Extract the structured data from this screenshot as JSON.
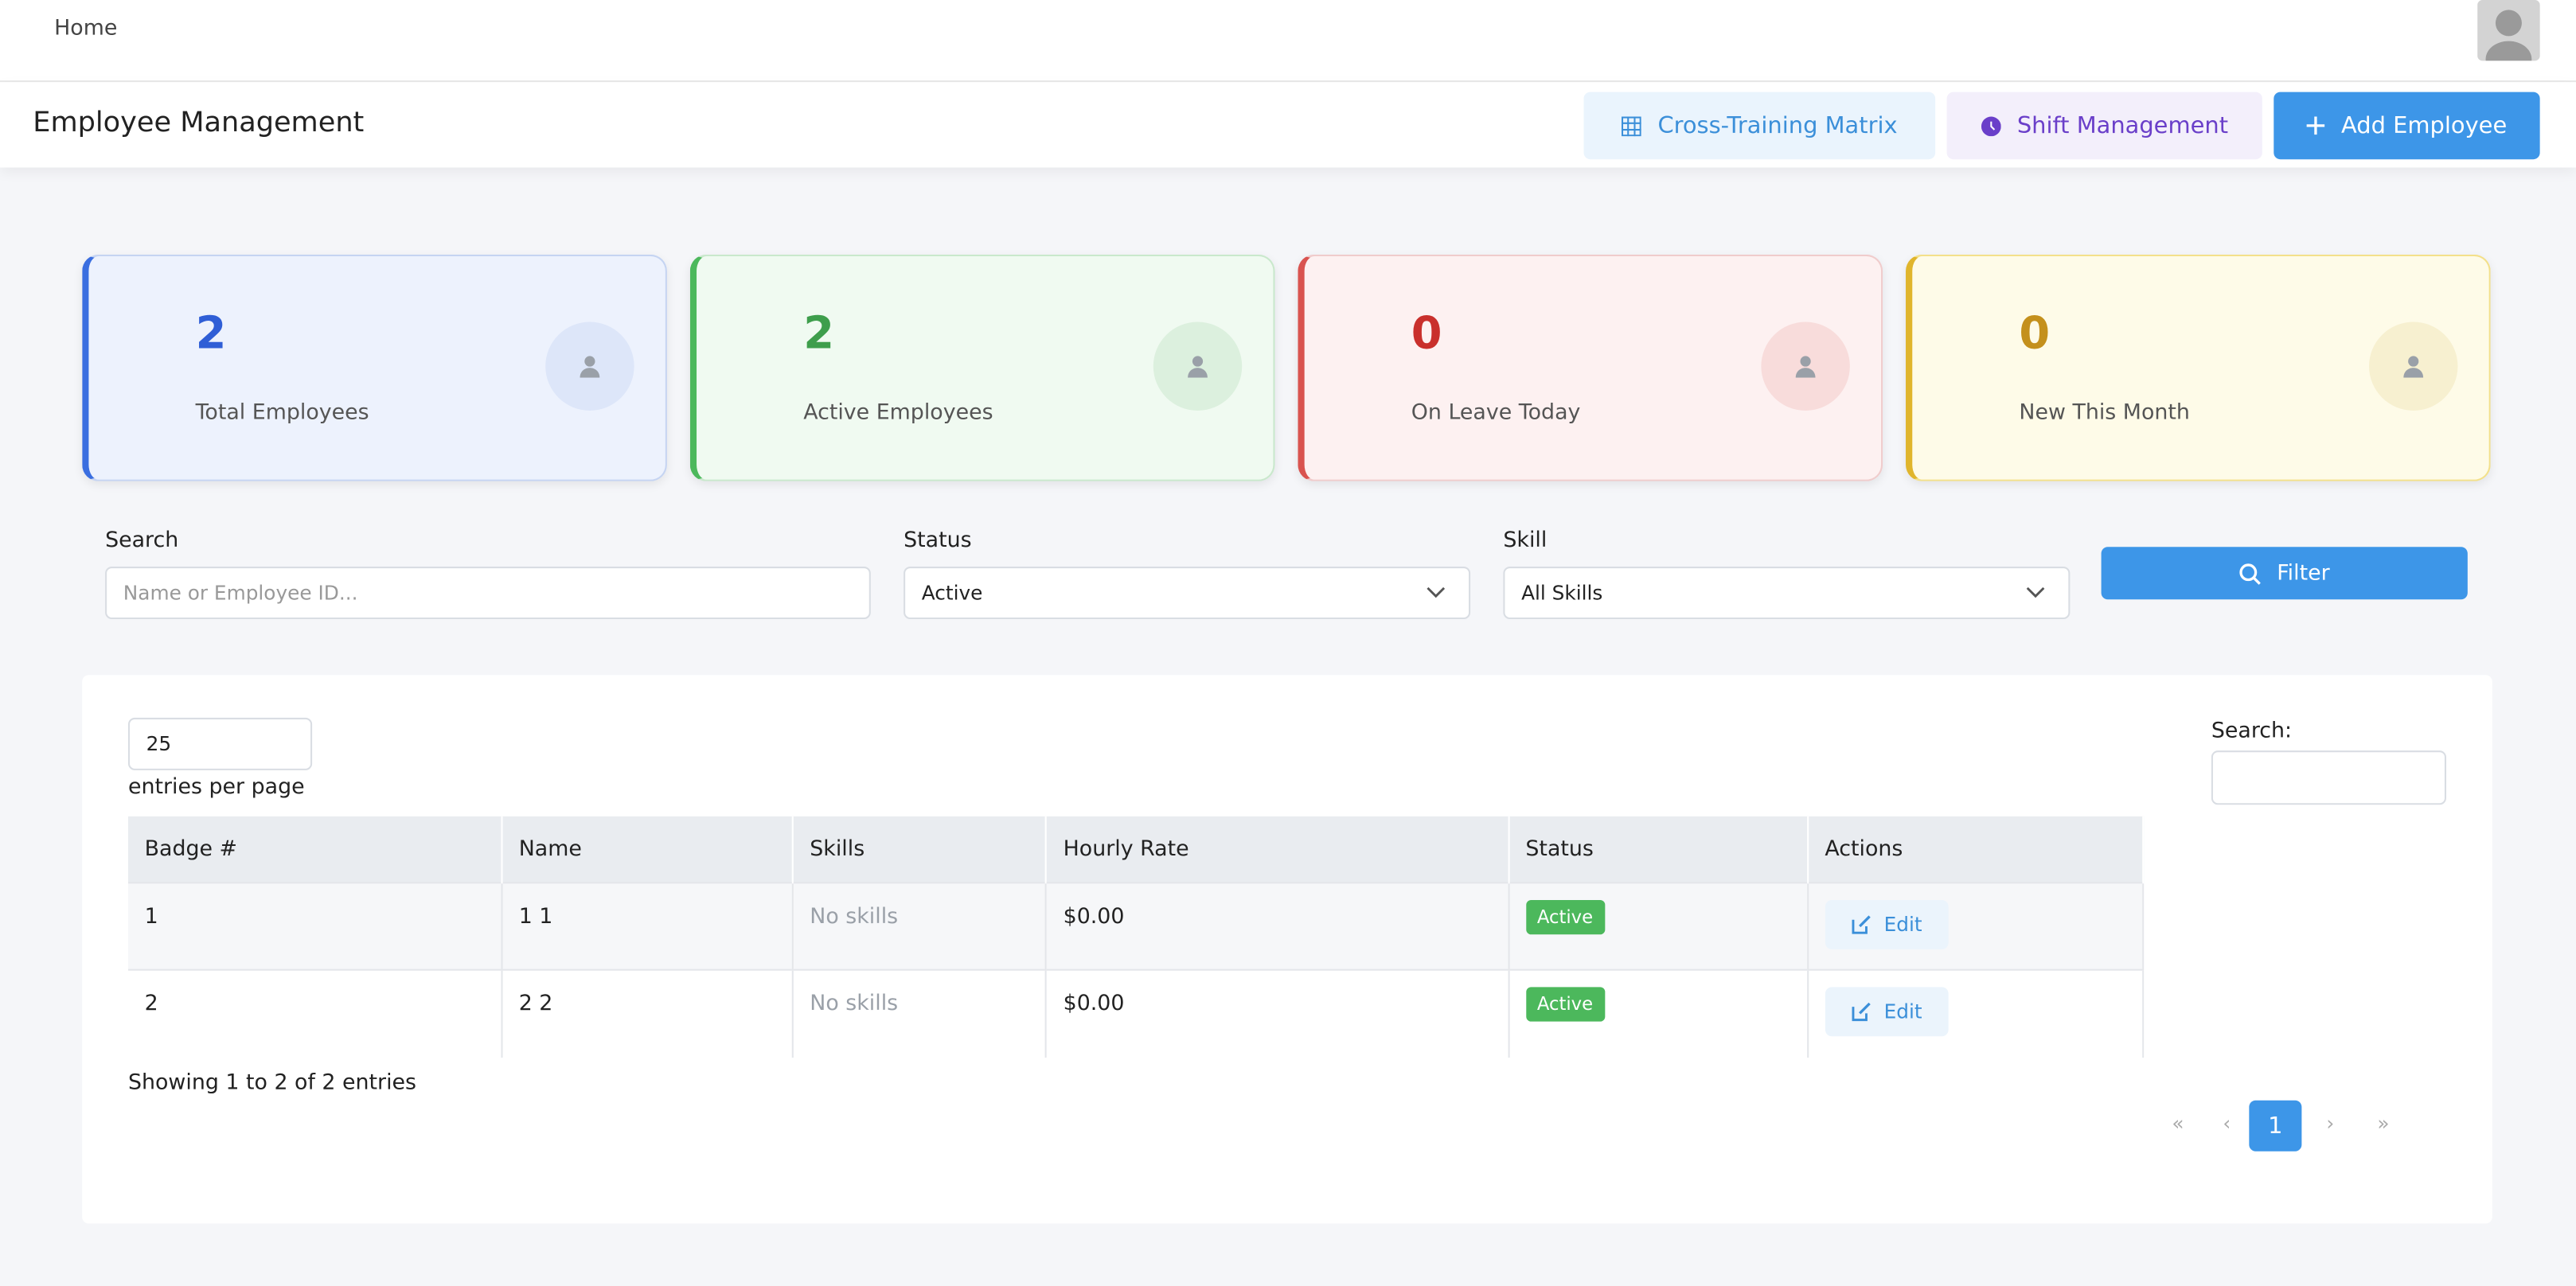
{
  "nav": {
    "home": "Home"
  },
  "header": {
    "title": "Employee Management",
    "buttons": [
      "Cross-Training Matrix",
      "Shift Management",
      "Add Employee"
    ]
  },
  "stats": [
    {
      "value": "2",
      "label": "Total Employees"
    },
    {
      "value": "2",
      "label": "Active Employees"
    },
    {
      "value": "0",
      "label": "On Leave Today"
    },
    {
      "value": "0",
      "label": "New This Month"
    }
  ],
  "filters": {
    "search_label": "Search",
    "search_placeholder": "Name or Employee ID...",
    "status_label": "Status",
    "status_value": "Active",
    "skill_label": "Skill",
    "skill_value": "All Skills",
    "button": "Filter"
  },
  "table": {
    "page_length": "25",
    "page_length_label": "entries per page",
    "search_label": "Search:",
    "columns": [
      "Badge #",
      "Name",
      "Skills",
      "Hourly Rate",
      "Status",
      "Actions"
    ],
    "rows": [
      [
        "1",
        "1 1",
        "No skills",
        "$0.00",
        "Active",
        "Edit"
      ],
      [
        "2",
        "2 2",
        "No skills",
        "$0.00",
        "Active",
        "Edit"
      ]
    ],
    "info": "Showing 1 to 2 of 2 entries",
    "pagination": [
      "«",
      "‹",
      "1",
      "›",
      "»"
    ]
  }
}
